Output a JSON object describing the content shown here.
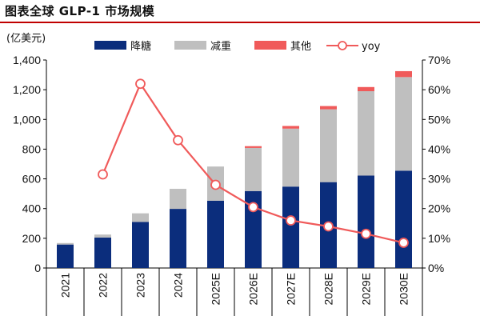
{
  "title": "图表全球 GLP-1 市场规模",
  "chart_data": {
    "type": "bar",
    "stacked": true,
    "categories": [
      "2021",
      "2022",
      "2023",
      "2024",
      "2025E",
      "2026E",
      "2027E",
      "2028E",
      "2029E",
      "2030E"
    ],
    "series": [
      {
        "name": "降糖",
        "color": "#0b2d7c",
        "values": [
          158,
          205,
          310,
          398,
          453,
          518,
          548,
          578,
          622,
          655
        ]
      },
      {
        "name": "减重",
        "color": "#bfbfbf",
        "values": [
          10,
          20,
          58,
          135,
          230,
          290,
          390,
          490,
          568,
          630
        ]
      },
      {
        "name": "其他",
        "color": "#f05a5a",
        "values": [
          0,
          0,
          0,
          0,
          0,
          12,
          18,
          22,
          28,
          40
        ]
      }
    ],
    "line_series": {
      "name": "yoy",
      "color": "#f05a5a",
      "values": [
        null,
        31.5,
        62,
        43,
        28,
        20.5,
        16,
        14,
        11.5,
        8.5
      ]
    },
    "ylabel_left": "(亿美元)",
    "ylim_left": [
      0,
      1400
    ],
    "yticks_left": [
      "0",
      "200",
      "400",
      "600",
      "800",
      "1,000",
      "1,200",
      "1,400"
    ],
    "ylim_right": [
      0,
      70
    ],
    "yticks_right": [
      "0%",
      "10%",
      "20%",
      "30%",
      "40%",
      "50%",
      "60%",
      "70%"
    ],
    "grid": false,
    "legend_position": "top"
  }
}
